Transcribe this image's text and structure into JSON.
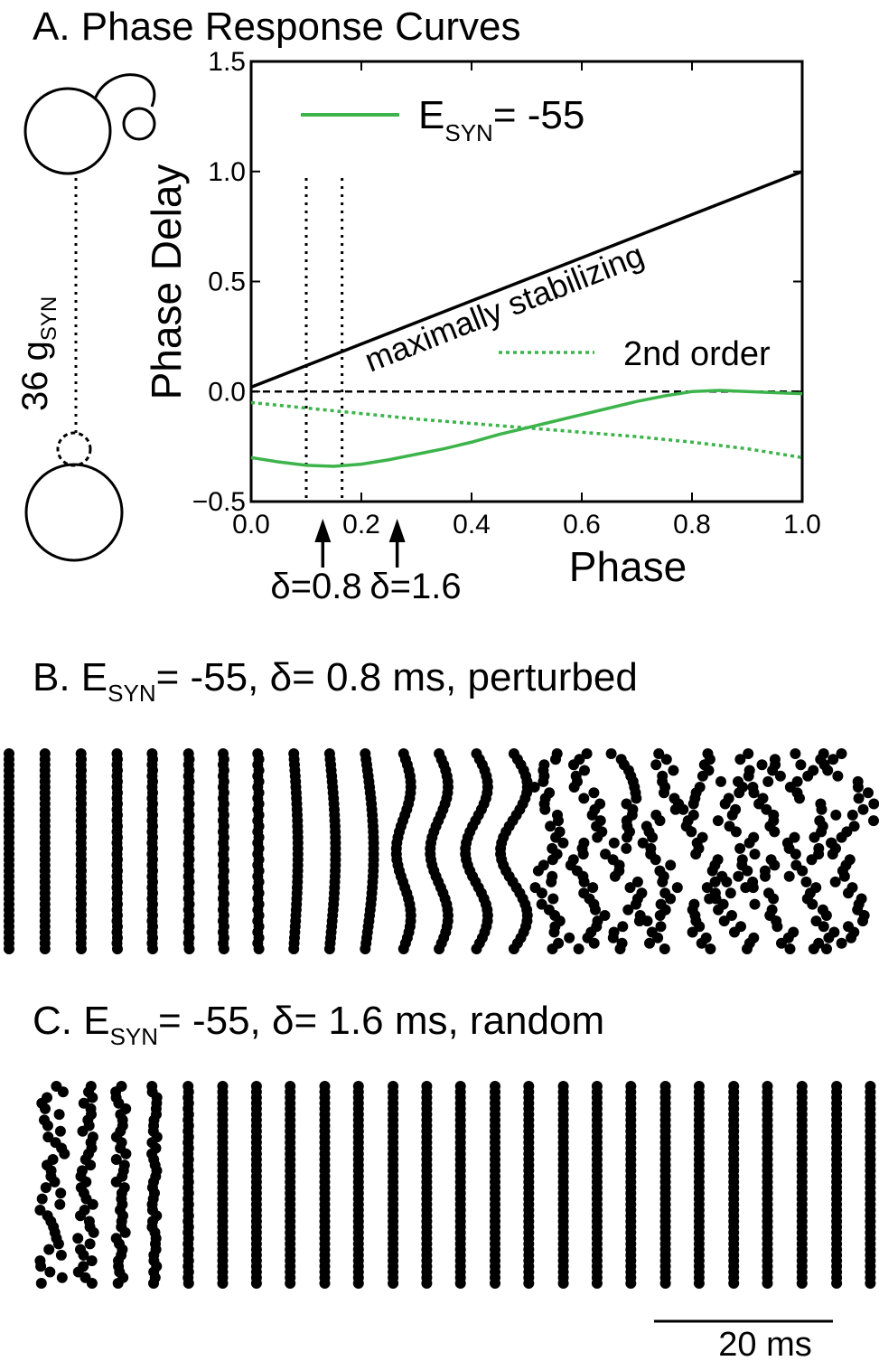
{
  "panel_a": {
    "title": "A. Phase Response Curves",
    "circuit": {
      "label_main": "36 g",
      "label_sub": "SYN"
    },
    "legend": [
      {
        "label_main": "E",
        "label_sub": "SYN",
        "label_rest": "= -55",
        "color": "#3cb44b",
        "style": "solid"
      }
    ],
    "annotations": {
      "diagonal": "maximally stabilizing",
      "second_order": "2nd order",
      "delta_08": "δ=0.8",
      "delta_16": "δ=1.6"
    }
  },
  "panel_b": {
    "title_main": "B. E",
    "title_sub": "SYN",
    "title_rest": "= -55, δ= 0.8 ms, perturbed"
  },
  "panel_c": {
    "title_main": "C. E",
    "title_sub": "SYN",
    "title_rest": "= -55, δ= 1.6 ms, random"
  },
  "scale_bar": {
    "label": "20 ms",
    "value_ms": 20
  },
  "chart_data": [
    {
      "type": "line",
      "title": "",
      "xlabel": "Phase",
      "ylabel": "Phase Delay",
      "xlim": [
        0.0,
        1.0
      ],
      "ylim": [
        -0.5,
        1.5
      ],
      "xticks": [
        "0.0",
        "0.2",
        "0.4",
        "0.6",
        "0.8",
        "1.0"
      ],
      "yticks": [
        "−0.5",
        "0.0",
        "0.5",
        "1.0",
        "1.5"
      ],
      "colors": {
        "prc": "#3cb44b",
        "second_order": "#3cb44b",
        "diagonal": "#000000"
      },
      "series": [
        {
          "name": "E SYN = -55",
          "style": "solid",
          "x": [
            0.0,
            0.05,
            0.1,
            0.15,
            0.2,
            0.25,
            0.3,
            0.35,
            0.4,
            0.45,
            0.5,
            0.55,
            0.6,
            0.65,
            0.7,
            0.75,
            0.8,
            0.85,
            0.9,
            0.95,
            1.0
          ],
          "y": [
            -0.3,
            -0.32,
            -0.335,
            -0.34,
            -0.33,
            -0.31,
            -0.285,
            -0.26,
            -0.23,
            -0.195,
            -0.165,
            -0.135,
            -0.105,
            -0.075,
            -0.045,
            -0.02,
            0.0,
            0.005,
            0.0,
            -0.005,
            -0.01
          ]
        },
        {
          "name": "2nd order",
          "style": "dotted",
          "x": [
            0.0,
            0.1,
            0.2,
            0.3,
            0.4,
            0.5,
            0.6,
            0.7,
            0.8,
            0.9,
            1.0
          ],
          "y": [
            -0.05,
            -0.075,
            -0.1,
            -0.125,
            -0.145,
            -0.165,
            -0.185,
            -0.205,
            -0.23,
            -0.26,
            -0.3
          ]
        },
        {
          "name": "maximally stabilizing",
          "style": "solid",
          "x": [
            0.0,
            1.0
          ],
          "y": [
            0.02,
            1.0
          ]
        }
      ],
      "reference_lines": {
        "y_zero_dashed": 0.0,
        "x_dotted": [
          0.1,
          0.165,
          1.0
        ]
      },
      "arrows_at_phase": [
        0.13,
        0.265
      ]
    },
    {
      "type": "scatter",
      "title": "B",
      "neurons": 36,
      "columns": [
        {
          "t": 0.0,
          "offset": 0.0,
          "shape": "straight",
          "top_start": 0
        },
        {
          "t": 3.85,
          "offset": 0.0,
          "shape": "straight"
        },
        {
          "t": 7.7,
          "offset": 0.1,
          "shape": "straight"
        },
        {
          "t": 11.55,
          "offset": 0.15,
          "shape": "straight"
        },
        {
          "t": 15.3,
          "offset": 0.2,
          "shape": "straight"
        },
        {
          "t": 19.2,
          "offset": 0.25,
          "shape": "straight"
        },
        {
          "t": 22.9,
          "offset": 0.3,
          "shape": "straight"
        },
        {
          "t": 26.6,
          "offset": 0.4,
          "shape": "straight"
        },
        {
          "t": 30.6,
          "offset": 0.5,
          "shape": "bow"
        },
        {
          "t": 34.5,
          "offset": 0.7,
          "shape": "bow"
        },
        {
          "t": 38.4,
          "offset": 1.0,
          "shape": "bow"
        },
        {
          "t": 42.2,
          "offset": 1.3,
          "shape": "zigzag"
        },
        {
          "t": 46.0,
          "offset": 1.6,
          "shape": "zigzag"
        },
        {
          "t": 50.0,
          "offset": 2.0,
          "shape": "zigzag"
        },
        {
          "t": 54.0,
          "offset": 2.4,
          "shape": "zigzag"
        },
        {
          "t": 58.0,
          "offset": 2.8,
          "shape": "scatter"
        },
        {
          "t": 62.0,
          "offset": 3.0,
          "shape": "scatter"
        },
        {
          "t": 66.0,
          "offset": 3.2,
          "shape": "scatter"
        },
        {
          "t": 70.0,
          "offset": 3.4,
          "shape": "scatter"
        },
        {
          "t": 74.0,
          "offset": 3.6,
          "shape": "scatter"
        },
        {
          "t": 78.0,
          "offset": 3.8,
          "shape": "scatter"
        },
        {
          "t": 82.0,
          "offset": 4.0,
          "shape": "scatter"
        },
        {
          "t": 86.0,
          "offset": 4.2,
          "shape": "scatter"
        },
        {
          "t": 90.0,
          "offset": 4.4,
          "shape": "scatter"
        }
      ]
    },
    {
      "type": "scatter",
      "title": "C",
      "neurons": 36,
      "columns": [
        {
          "t": 0.0,
          "offset": 1.5,
          "shape": "random"
        },
        {
          "t": 3.8,
          "offset": 1.0,
          "shape": "random"
        },
        {
          "t": 7.7,
          "offset": 0.6,
          "shape": "random"
        },
        {
          "t": 11.5,
          "offset": 0.3,
          "shape": "random"
        },
        {
          "t": 15.3,
          "offset": 0.2,
          "shape": "straight"
        },
        {
          "t": 19.2,
          "offset": 0.0,
          "shape": "straight"
        },
        {
          "t": 23.0,
          "offset": 0.0,
          "shape": "straight"
        },
        {
          "t": 26.8,
          "offset": 0.0,
          "shape": "straight"
        },
        {
          "t": 30.7,
          "offset": 0.0,
          "shape": "straight"
        },
        {
          "t": 34.5,
          "offset": 0.0,
          "shape": "straight"
        },
        {
          "t": 38.4,
          "offset": 0.0,
          "shape": "straight"
        },
        {
          "t": 42.2,
          "offset": 0.0,
          "shape": "straight"
        },
        {
          "t": 46.0,
          "offset": 0.0,
          "shape": "straight"
        },
        {
          "t": 49.9,
          "offset": 0.0,
          "shape": "straight"
        },
        {
          "t": 53.7,
          "offset": 0.0,
          "shape": "straight"
        },
        {
          "t": 57.6,
          "offset": 0.0,
          "shape": "straight"
        },
        {
          "t": 61.4,
          "offset": 0.0,
          "shape": "straight"
        },
        {
          "t": 65.2,
          "offset": 0.0,
          "shape": "straight"
        },
        {
          "t": 69.1,
          "offset": 0.0,
          "shape": "straight"
        },
        {
          "t": 72.9,
          "offset": 0.0,
          "shape": "straight"
        },
        {
          "t": 76.8,
          "offset": 0.0,
          "shape": "straight"
        },
        {
          "t": 80.6,
          "offset": 0.0,
          "shape": "straight"
        },
        {
          "t": 84.5,
          "offset": 0.0,
          "shape": "straight"
        },
        {
          "t": 88.4,
          "offset": 0.0,
          "shape": "straight"
        },
        {
          "t": 92.2,
          "offset": 0.0,
          "shape": "straight"
        }
      ]
    }
  ]
}
